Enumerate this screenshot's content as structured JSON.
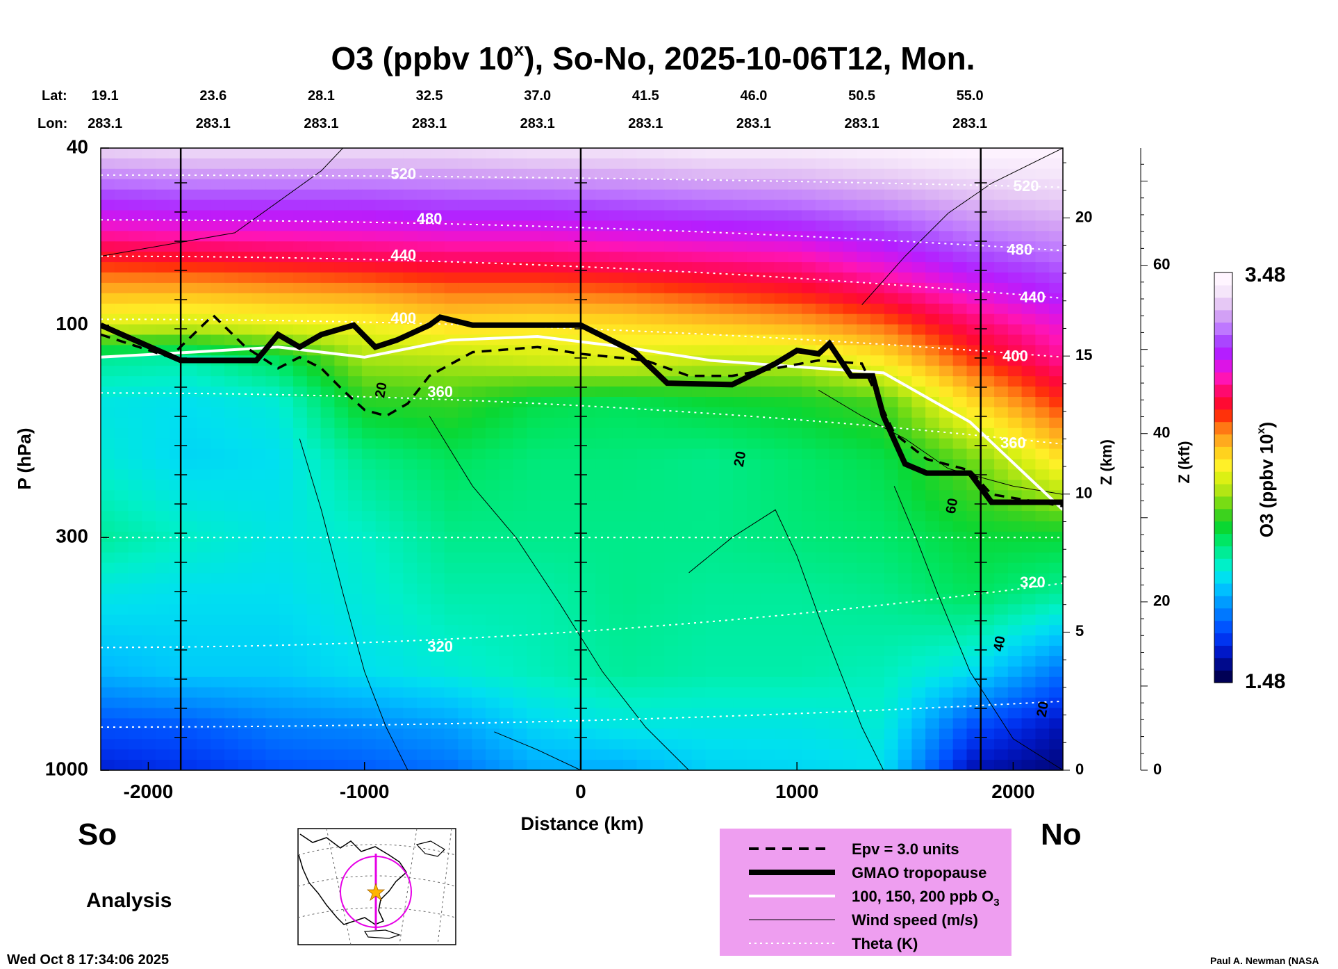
{
  "chart_data": {
    "type": "heatmap",
    "title": "O3 (ppbv 10",
    "title_sup": "x",
    "title_rest": "), So-No, 2025-10-06T12, Mon.",
    "xlabel": "Distance (km)",
    "ylabel": "P (hPa)",
    "right_axis1_label": "Z (km)",
    "right_axis2_label": "Z (kft)",
    "x_range": [
      -2220,
      2230
    ],
    "x_ticks": [
      -2000,
      -1000,
      0,
      1000,
      2000
    ],
    "y_scale": "log",
    "y_range": [
      1000,
      40
    ],
    "y_ticks": [
      40,
      100,
      300,
      1000
    ],
    "z_km_ticks": [
      0,
      5,
      10,
      15,
      20
    ],
    "z_kft_ticks": [
      0,
      20,
      40,
      60
    ],
    "lat_label": "Lat:",
    "lon_label": "Lon:",
    "lat_ticks": [
      "19.1",
      "23.6",
      "28.1",
      "32.5",
      "37.0",
      "41.5",
      "46.0",
      "50.5",
      "55.0"
    ],
    "lon_ticks": [
      "283.1",
      "283.1",
      "283.1",
      "283.1",
      "283.1",
      "283.1",
      "283.1",
      "283.1",
      "283.1"
    ],
    "lat_lon_distance_km": [
      -2200,
      -1700,
      -1200,
      -700,
      -200,
      300,
      800,
      1300,
      1800
    ],
    "vertical_markers_km": [
      -1850,
      0,
      1850
    ],
    "colorbar": {
      "label": "O3 (ppbv 10",
      "label_sup": "x",
      "label_end": ")",
      "max_label": "3.48",
      "min_label": "1.48",
      "range": [
        1.48,
        3.48
      ],
      "colors": [
        "#000055",
        "#000a8c",
        "#0018c8",
        "#0034f0",
        "#0054ff",
        "#0078ff",
        "#009cff",
        "#00c0ff",
        "#00e0f0",
        "#00f0c8",
        "#00ec96",
        "#00e664",
        "#0ad732",
        "#3cd21e",
        "#78dc14",
        "#b4e614",
        "#dcf014",
        "#fff028",
        "#ffd21e",
        "#ffaa1e",
        "#ff7814",
        "#ff320a",
        "#ff0a32",
        "#ff0a6e",
        "#ff14b4",
        "#dc14e6",
        "#b41eff",
        "#aa46ff",
        "#be78ff",
        "#d2a0f5",
        "#e6c8f5",
        "#f5e6fa",
        "#fff5ff"
      ]
    },
    "o3_field": {
      "value_range": [
        1.48,
        3.48
      ],
      "distance_km": [
        -2220,
        -1800,
        -1400,
        -1000,
        -600,
        -200,
        200,
        600,
        1000,
        1400,
        1800,
        2230
      ],
      "pressure_hpa": [
        1000,
        800,
        600,
        400,
        300,
        200,
        150,
        120,
        100,
        85,
        70,
        55,
        40
      ],
      "values": [
        [
          1.62,
          1.66,
          1.72,
          1.74,
          1.78,
          1.88,
          1.88,
          1.95,
          1.96,
          1.98,
          1.58,
          1.52
        ],
        [
          1.72,
          1.74,
          1.8,
          1.82,
          1.86,
          1.96,
          2.0,
          2.0,
          2.0,
          2.02,
          1.72,
          1.58
        ],
        [
          1.9,
          1.94,
          1.94,
          1.98,
          2.02,
          2.06,
          2.1,
          2.08,
          2.08,
          2.06,
          1.98,
          1.78
        ],
        [
          2.0,
          1.98,
          1.98,
          2.02,
          2.08,
          2.08,
          2.12,
          2.1,
          2.1,
          2.12,
          2.18,
          2.1
        ],
        [
          2.1,
          2.04,
          2.0,
          2.04,
          2.12,
          2.12,
          2.12,
          2.12,
          2.14,
          2.16,
          2.22,
          2.22
        ],
        [
          2.02,
          1.96,
          1.98,
          2.12,
          2.18,
          2.14,
          2.14,
          2.12,
          2.16,
          2.2,
          2.34,
          2.58
        ],
        [
          2.0,
          1.98,
          2.02,
          2.26,
          2.28,
          2.2,
          2.18,
          2.22,
          2.24,
          2.3,
          2.58,
          2.8
        ],
        [
          2.1,
          2.08,
          2.18,
          2.4,
          2.42,
          2.46,
          2.48,
          2.44,
          2.44,
          2.56,
          2.78,
          2.95
        ],
        [
          2.48,
          2.46,
          2.5,
          2.52,
          2.58,
          2.56,
          2.58,
          2.62,
          2.66,
          2.74,
          2.9,
          3.02
        ],
        [
          2.64,
          2.64,
          2.66,
          2.68,
          2.72,
          2.72,
          2.74,
          2.78,
          2.82,
          2.9,
          3.02,
          3.12
        ],
        [
          2.84,
          2.86,
          2.88,
          2.9,
          2.92,
          2.92,
          2.94,
          2.96,
          2.98,
          3.06,
          3.16,
          3.22
        ],
        [
          3.1,
          3.12,
          3.12,
          3.12,
          3.14,
          3.14,
          3.16,
          3.18,
          3.2,
          3.24,
          3.3,
          3.34
        ],
        [
          3.38,
          3.4,
          3.4,
          3.4,
          3.4,
          3.42,
          3.42,
          3.44,
          3.44,
          3.46,
          3.48,
          3.48
        ]
      ]
    },
    "tropopause_gmao": {
      "x": [
        -2220,
        -1850,
        -1500,
        -1400,
        -1300,
        -1200,
        -1050,
        -950,
        -850,
        -700,
        -650,
        -500,
        -200,
        0,
        250,
        400,
        700,
        900,
        1000,
        1100,
        1150,
        1250,
        1350,
        1400,
        1500,
        1600,
        1800,
        1900,
        2230
      ],
      "p": [
        100,
        120,
        120,
        105,
        112,
        105,
        100,
        112,
        108,
        100,
        96,
        100,
        100,
        100,
        115,
        135,
        136,
        122,
        114,
        116,
        110,
        130,
        130,
        160,
        205,
        215,
        215,
        250,
        250
      ]
    },
    "epv_3": {
      "x": [
        -2220,
        -1900,
        -1700,
        -1550,
        -1400,
        -1300,
        -1200,
        -1100,
        -1000,
        -900,
        -800,
        -700,
        -500,
        -200,
        0,
        300,
        500,
        700,
        900,
        1100,
        1300,
        1450,
        1600,
        1800,
        1900,
        2230
      ],
      "p": [
        105,
        118,
        95,
        112,
        125,
        118,
        125,
        140,
        155,
        160,
        150,
        130,
        115,
        112,
        116,
        120,
        130,
        130,
        125,
        120,
        122,
        175,
        200,
        212,
        240,
        255
      ]
    },
    "o3_100_150_200_contour": {
      "x": [
        -2220,
        -1800,
        -1400,
        -1000,
        -600,
        -200,
        200,
        600,
        1000,
        1400,
        1800,
        2230
      ],
      "p": [
        118,
        115,
        112,
        118,
        108,
        106,
        112,
        120,
        124,
        128,
        165,
        260
      ]
    },
    "theta_labels": [
      {
        "text": "520",
        "x": -820,
        "p": 46
      },
      {
        "text": "480",
        "x": -700,
        "p": 58
      },
      {
        "text": "440",
        "x": -820,
        "p": 70
      },
      {
        "text": "400",
        "x": -820,
        "p": 97
      },
      {
        "text": "360",
        "x": -650,
        "p": 142
      },
      {
        "text": "320",
        "x": -650,
        "p": 530
      },
      {
        "text": "520",
        "x": 2060,
        "p": 49
      },
      {
        "text": "480",
        "x": 2030,
        "p": 68
      },
      {
        "text": "440",
        "x": 2090,
        "p": 87
      },
      {
        "text": "400",
        "x": 2010,
        "p": 118
      },
      {
        "text": "360",
        "x": 2000,
        "p": 185
      },
      {
        "text": "320",
        "x": 2090,
        "p": 380
      }
    ],
    "wind_labels": [
      {
        "text": "20",
        "x": -920,
        "p": 140
      },
      {
        "text": "20",
        "x": 740,
        "p": 200
      },
      {
        "text": "60",
        "x": 1720,
        "p": 255
      },
      {
        "text": "40",
        "x": 1940,
        "p": 520
      },
      {
        "text": "20",
        "x": 2140,
        "p": 730
      }
    ],
    "legend": [
      {
        "label": "Epv = 3.0 units",
        "style": "dashed-black"
      },
      {
        "label": "GMAO tropopause",
        "style": "thick-black"
      },
      {
        "label": "100, 150, 200 ppb O",
        "label_sub": "3",
        "style": "white"
      },
      {
        "label": "Wind speed (m/s)",
        "style": "thin-black"
      },
      {
        "label": "Theta (K)",
        "style": "dotted-white"
      }
    ],
    "legend_position": "bottom-right"
  },
  "labels": {
    "south": "So",
    "north": "No",
    "analysis": "Analysis",
    "timestamp": "Wed Oct  8 17:34:06 2025",
    "credit": "Paul A. Newman (NASA"
  },
  "colors": {
    "legend_bg": "#ee9ef0",
    "map_track": "#e600e6",
    "map_star": "#ffb400"
  }
}
